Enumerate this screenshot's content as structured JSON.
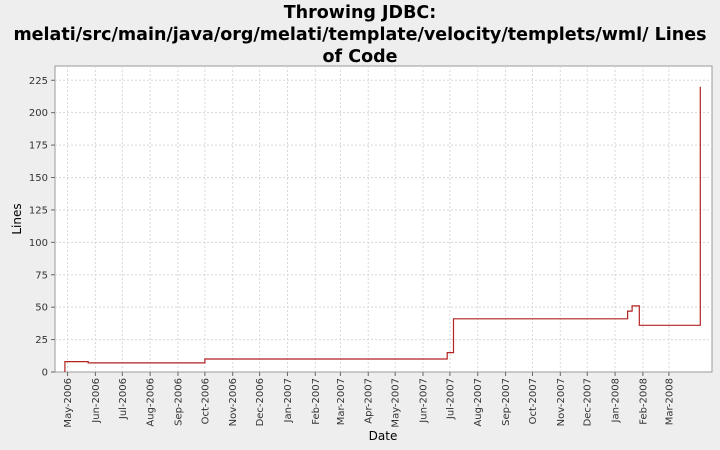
{
  "chart_data": {
    "type": "line",
    "title_line1": "Throwing JDBC:",
    "title_line2": "melati/src/main/java/org/melati/template/velocity/templets/wml/ Lines",
    "title_line3": "of Code",
    "xlabel": "Date",
    "ylabel": "Lines",
    "ylim": [
      0,
      236
    ],
    "y_ticks": [
      0,
      25,
      50,
      75,
      100,
      125,
      150,
      175,
      200,
      225
    ],
    "x_range": [
      "2006-04-17",
      "2008-04-18"
    ],
    "x_ticks": [
      {
        "label": "May-2006",
        "date": "2006-05-01"
      },
      {
        "label": "Jun-2006",
        "date": "2006-06-01"
      },
      {
        "label": "Jul-2006",
        "date": "2006-07-01"
      },
      {
        "label": "Aug-2006",
        "date": "2006-08-01"
      },
      {
        "label": "Sep-2006",
        "date": "2006-09-01"
      },
      {
        "label": "Oct-2006",
        "date": "2006-10-01"
      },
      {
        "label": "Nov-2006",
        "date": "2006-11-01"
      },
      {
        "label": "Dec-2006",
        "date": "2006-12-01"
      },
      {
        "label": "Jan-2007",
        "date": "2007-01-01"
      },
      {
        "label": "Feb-2007",
        "date": "2007-02-01"
      },
      {
        "label": "Mar-2007",
        "date": "2007-03-01"
      },
      {
        "label": "Apr-2007",
        "date": "2007-04-01"
      },
      {
        "label": "May-2007",
        "date": "2007-05-01"
      },
      {
        "label": "Jun-2007",
        "date": "2007-06-01"
      },
      {
        "label": "Jul-2007",
        "date": "2007-07-01"
      },
      {
        "label": "Aug-2007",
        "date": "2007-08-01"
      },
      {
        "label": "Sep-2007",
        "date": "2007-09-01"
      },
      {
        "label": "Oct-2007",
        "date": "2007-10-01"
      },
      {
        "label": "Nov-2007",
        "date": "2007-11-01"
      },
      {
        "label": "Dec-2007",
        "date": "2007-12-01"
      },
      {
        "label": "Jan-2008",
        "date": "2008-01-01"
      },
      {
        "label": "Feb-2008",
        "date": "2008-02-01"
      },
      {
        "label": "Mar-2008",
        "date": "2008-03-01"
      }
    ],
    "series": [
      {
        "color": "#b22222",
        "step": true,
        "points": [
          {
            "x": "2006-04-28",
            "y": 0
          },
          {
            "x": "2006-04-28",
            "y": 8
          },
          {
            "x": "2006-05-24",
            "y": 8
          },
          {
            "x": "2006-05-24",
            "y": 7
          },
          {
            "x": "2006-10-01",
            "y": 7
          },
          {
            "x": "2006-10-01",
            "y": 10
          },
          {
            "x": "2007-06-28",
            "y": 10
          },
          {
            "x": "2007-06-28",
            "y": 15
          },
          {
            "x": "2007-07-05",
            "y": 15
          },
          {
            "x": "2007-07-05",
            "y": 41
          },
          {
            "x": "2008-01-15",
            "y": 41
          },
          {
            "x": "2008-01-15",
            "y": 47
          },
          {
            "x": "2008-01-20",
            "y": 47
          },
          {
            "x": "2008-01-20",
            "y": 51
          },
          {
            "x": "2008-01-28",
            "y": 51
          },
          {
            "x": "2008-01-28",
            "y": 36
          },
          {
            "x": "2008-04-05",
            "y": 36
          },
          {
            "x": "2008-04-05",
            "y": 220
          }
        ]
      }
    ],
    "grid": true,
    "colors": {
      "background": "#eeeeee",
      "plot_background": "#ffffff",
      "gridline": "#d8d8d8",
      "line": "#b22222"
    }
  }
}
